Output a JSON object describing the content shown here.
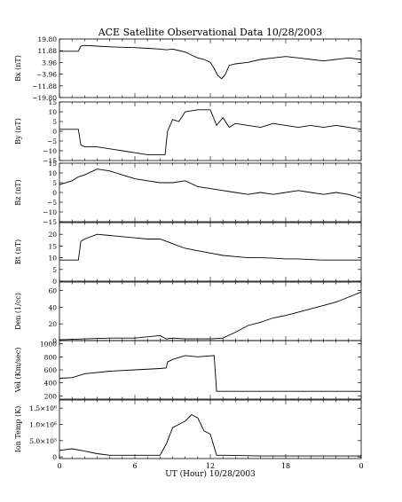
{
  "title": "ACE Satellite Observational Data   10/28/2003",
  "xlabel": "UT (Hour)   10/28/2003",
  "x_ticks": [
    "0",
    "6",
    "12",
    "18",
    "0"
  ],
  "line_color": "#000000",
  "chart_data": [
    {
      "type": "line",
      "panel": "Bx",
      "ylabel": "Bx (nT)",
      "ylim": [
        -19.8,
        19.8
      ],
      "y_ticks": [
        {
          "v": 19.8,
          "t": "19.80"
        },
        {
          "v": 11.88,
          "t": "11.88"
        },
        {
          "v": 3.96,
          "t": "3.96"
        },
        {
          "v": -3.96,
          "t": "−3.96"
        },
        {
          "v": -11.88,
          "t": "−11.88"
        },
        {
          "v": -19.8,
          "t": "−19.80"
        }
      ],
      "x": [
        0,
        1.5,
        1.7,
        2.0,
        3.0,
        4.0,
        5.0,
        6.0,
        7.0,
        8.0,
        8.5,
        9.0,
        9.5,
        10.0,
        10.5,
        11.0,
        11.5,
        12.0,
        12.3,
        12.6,
        12.9,
        13.2,
        13.5,
        14.0,
        15.0,
        16.0,
        17.0,
        18.0,
        19.0,
        20.0,
        21.0,
        22.0,
        23.0,
        24.0
      ],
      "y": [
        11.5,
        11.5,
        15,
        15.5,
        15,
        14.5,
        14.2,
        14,
        13.5,
        13,
        12.5,
        13,
        12,
        11,
        9,
        7,
        6,
        4,
        0,
        -5,
        -7,
        -4,
        2,
        3,
        4,
        6,
        7,
        8,
        7,
        6,
        5,
        6,
        7,
        6
      ]
    },
    {
      "type": "line",
      "panel": "By",
      "ylabel": "By (nT)",
      "ylim": [
        -15,
        15
      ],
      "y_ticks": [
        {
          "v": 15,
          "t": "15"
        },
        {
          "v": 10,
          "t": "10"
        },
        {
          "v": 5,
          "t": "5"
        },
        {
          "v": 0,
          "t": "0"
        },
        {
          "v": -5,
          "t": "−5"
        },
        {
          "v": -10,
          "t": "−10"
        },
        {
          "v": -15,
          "t": "−15"
        }
      ],
      "x": [
        0,
        1.5,
        1.7,
        2.0,
        3.0,
        4.0,
        5.0,
        6.0,
        7.0,
        8.0,
        8.4,
        8.6,
        9.0,
        9.5,
        10.0,
        11.0,
        12.0,
        12.5,
        13.0,
        13.5,
        14.0,
        15.0,
        16.0,
        17.0,
        18.0,
        19.0,
        20.0,
        21.0,
        22.0,
        23.0,
        24.0
      ],
      "y": [
        1,
        1,
        -7,
        -8,
        -8,
        -9,
        -10,
        -11,
        -12,
        -12,
        -12,
        0,
        6,
        5,
        10,
        11,
        11,
        3,
        7,
        2,
        4,
        3,
        2,
        4,
        3,
        2,
        3,
        2,
        3,
        2,
        1
      ]
    },
    {
      "type": "line",
      "panel": "Bz",
      "ylabel": "Bz (nT)",
      "ylim": [
        -15,
        15
      ],
      "y_ticks": [
        {
          "v": 15,
          "t": "15"
        },
        {
          "v": 10,
          "t": "10"
        },
        {
          "v": 5,
          "t": "5"
        },
        {
          "v": 0,
          "t": "0"
        },
        {
          "v": -5,
          "t": "−5"
        },
        {
          "v": -10,
          "t": "−10"
        },
        {
          "v": -15,
          "t": "−15"
        }
      ],
      "x": [
        0,
        1.0,
        1.5,
        2.0,
        3.0,
        4.0,
        5.0,
        6.0,
        7.0,
        8.0,
        9.0,
        10.0,
        11.0,
        12.0,
        13.0,
        14.0,
        15.0,
        16.0,
        17.0,
        18.0,
        19.0,
        20.0,
        21.0,
        22.0,
        23.0,
        24.0
      ],
      "y": [
        4,
        6,
        8,
        9,
        12,
        11,
        9,
        7,
        6,
        5,
        5,
        6,
        3,
        2,
        1,
        0,
        -1,
        0,
        -1,
        0,
        1,
        0,
        -1,
        0,
        -1,
        -3
      ]
    },
    {
      "type": "line",
      "panel": "Bt",
      "ylabel": "Bt (nT)",
      "ylim": [
        0,
        25
      ],
      "y_ticks": [
        {
          "v": 20,
          "t": "20"
        },
        {
          "v": 15,
          "t": "15"
        },
        {
          "v": 10,
          "t": "10"
        },
        {
          "v": 5,
          "t": "5"
        },
        {
          "v": 0,
          "t": "0"
        }
      ],
      "x": [
        0,
        1.5,
        1.7,
        2.0,
        3.0,
        4.0,
        5.0,
        6.0,
        7.0,
        8.0,
        8.5,
        9.0,
        10.0,
        11.0,
        12.0,
        13.0,
        14.0,
        15.0,
        16.0,
        17.0,
        18.0,
        19.0,
        20.0,
        21.0,
        22.0,
        23.0,
        24.0
      ],
      "y": [
        9,
        9,
        17,
        18,
        20,
        19.5,
        19,
        18.5,
        18,
        18,
        17,
        16,
        14,
        13,
        12,
        11,
        10.5,
        10,
        10,
        9.8,
        9.5,
        9.5,
        9.2,
        9,
        9,
        9,
        9
      ]
    },
    {
      "type": "line",
      "panel": "Den",
      "ylabel": "Den (1/cc)",
      "ylim": [
        0,
        70
      ],
      "y_ticks": [
        {
          "v": 60,
          "t": "60"
        },
        {
          "v": 40,
          "t": "40"
        },
        {
          "v": 20,
          "t": "20"
        },
        {
          "v": 0,
          "t": "0"
        }
      ],
      "x": [
        0,
        2.0,
        4.0,
        6.0,
        8.0,
        8.5,
        9.0,
        10.0,
        12.0,
        13.0,
        14.0,
        15.0,
        16.0,
        17.0,
        18.0,
        19.0,
        20.0,
        21.0,
        22.0,
        23.0,
        24.0
      ],
      "y": [
        1,
        2,
        3,
        3,
        6,
        2,
        3,
        2,
        2,
        3,
        10,
        18,
        22,
        27,
        30,
        34,
        38,
        42,
        46,
        52,
        58
      ]
    },
    {
      "type": "line",
      "panel": "Vel",
      "ylabel": "Vel (Km/sec)",
      "ylim": [
        150,
        1050
      ],
      "y_ticks": [
        {
          "v": 1000,
          "t": "1000"
        },
        {
          "v": 800,
          "t": "800"
        },
        {
          "v": 600,
          "t": "600"
        },
        {
          "v": 400,
          "t": "400"
        },
        {
          "v": 200,
          "t": "200"
        }
      ],
      "x": [
        0,
        1.0,
        2.0,
        4.0,
        6.0,
        8.0,
        8.5,
        8.6,
        9.0,
        10.0,
        11.0,
        12.3,
        12.5,
        13.0,
        16.0,
        20.0,
        24.0
      ],
      "y": [
        470,
        480,
        540,
        580,
        600,
        620,
        630,
        720,
        760,
        820,
        800,
        820,
        270,
        270,
        270,
        270,
        270
      ]
    },
    {
      "type": "line",
      "panel": "Ion Temp",
      "ylabel": "Ion Temp (K)",
      "ylim": [
        -50000,
        1750000
      ],
      "y_ticks": [
        {
          "v": 1500000,
          "t": "1.5×10⁶"
        },
        {
          "v": 1000000,
          "t": "1.0×10⁶"
        },
        {
          "v": 500000,
          "t": "5.0×10⁵"
        },
        {
          "v": 0,
          "t": "0"
        }
      ],
      "x": [
        0,
        1.0,
        2.0,
        3.0,
        4.0,
        6.0,
        8.0,
        8.5,
        9.0,
        9.5,
        10.0,
        10.5,
        11.0,
        11.5,
        12.0,
        12.5,
        13.0,
        16.0,
        20.0,
        24.0
      ],
      "y": [
        200000,
        250000,
        180000,
        100000,
        50000,
        50000,
        50000,
        400000,
        900000,
        1000000,
        1100000,
        1300000,
        1200000,
        800000,
        700000,
        50000,
        50000,
        30000,
        30000,
        30000
      ]
    }
  ]
}
